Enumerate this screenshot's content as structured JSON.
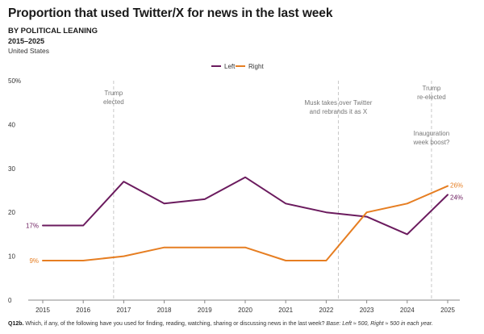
{
  "header": {
    "title": "Proportion that used Twitter/X for news in the last week",
    "subtitle": "BY POLITICAL LEANING",
    "years": "2015–2025",
    "region": "United States"
  },
  "chart_data": {
    "type": "line",
    "x": [
      2015,
      2016,
      2017,
      2018,
      2019,
      2020,
      2021,
      2022,
      2023,
      2024,
      2025
    ],
    "x_tick_labels": [
      "2015",
      "2016",
      "2017",
      "2018",
      "2019",
      "2020",
      "2021",
      "2022",
      "2023",
      "2024",
      "2025"
    ],
    "y_tick_values": [
      0,
      10,
      20,
      30,
      40,
      50
    ],
    "y_tick_labels": [
      "0",
      "10",
      "20",
      "30",
      "40",
      "50%"
    ],
    "ylim": [
      0,
      50
    ],
    "grid": false,
    "legend_position": "top-center",
    "series": [
      {
        "name": "Left",
        "color": "#6b1b5e",
        "values": [
          17,
          17,
          27,
          22,
          23,
          28,
          22,
          20,
          19,
          15,
          24
        ],
        "start_label": "17%",
        "end_label": "24%"
      },
      {
        "name": "Right",
        "color": "#e67e22",
        "values": [
          9,
          9,
          10,
          12,
          12,
          12,
          9,
          9,
          20,
          22,
          26
        ],
        "start_label": "9%",
        "end_label": "26%"
      }
    ],
    "annotations": [
      {
        "x": 2016.75,
        "lines": [
          "Trump",
          "elected"
        ],
        "has_rule": true
      },
      {
        "x": 2022.3,
        "lines": [
          "Musk takes over Twitter",
          "and rebrands it as X"
        ],
        "has_rule": true
      },
      {
        "x": 2024.6,
        "lines": [
          "Trump",
          "re-elected"
        ],
        "has_rule": true
      },
      {
        "x": 2024.6,
        "lines": [
          "Inauguration",
          "week boost?"
        ],
        "has_rule": false
      }
    ]
  },
  "footnote": {
    "question": "Q12b.",
    "text": " Which, if any, of the following have you used for finding, reading, watching, sharing or discussing news in the last week? ",
    "base": "Base: Left ≈ 500, Right ≈ 500 in each year."
  }
}
